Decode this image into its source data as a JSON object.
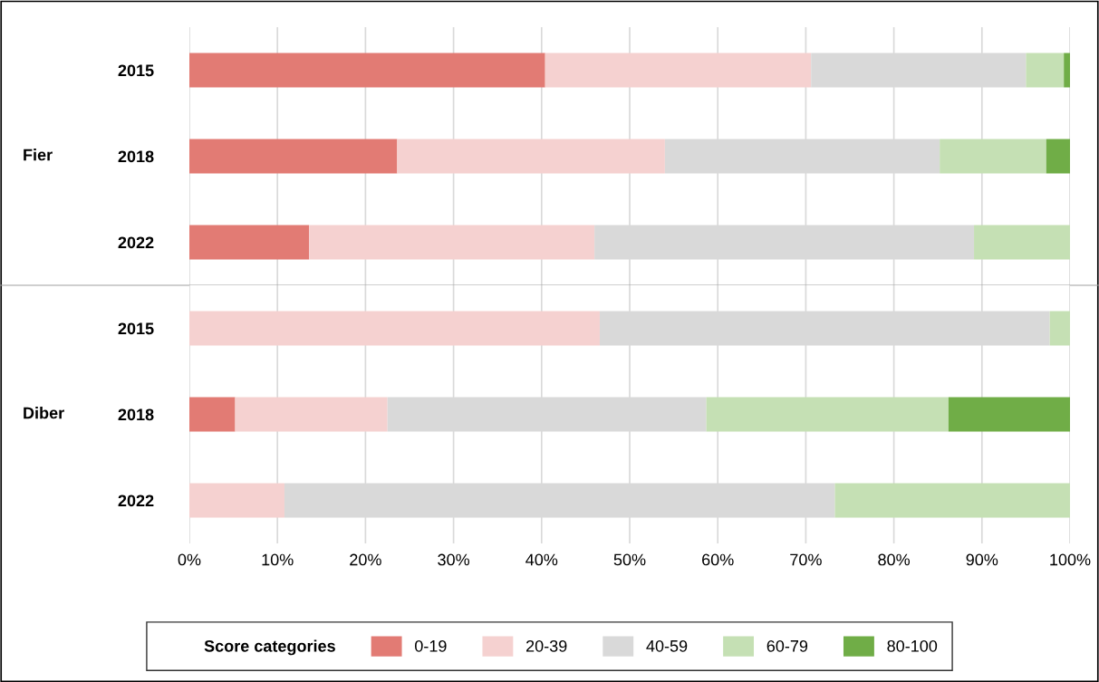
{
  "chart_data": [
    {
      "type": "bar",
      "orientation": "horizontal",
      "stacked": true,
      "categories": [
        "2015",
        "2018",
        "2022"
      ],
      "annotations": [
        "Fier"
      ],
      "series": [
        {
          "name": "0-19",
          "color": "#e27b74",
          "values": [
            40.4,
            23.6,
            13.6
          ]
        },
        {
          "name": "20-39",
          "color": "#f5d1d0",
          "values": [
            30.2,
            30.4,
            32.4
          ]
        },
        {
          "name": "40-59",
          "color": "#d9d9d9",
          "values": [
            24.4,
            31.2,
            43.1
          ]
        },
        {
          "name": "60-79",
          "color": "#c5e0b4",
          "values": [
            4.3,
            12.1,
            10.9
          ]
        },
        {
          "name": "80-100",
          "color": "#70ad47",
          "values": [
            0.7,
            2.7,
            0
          ]
        }
      ],
      "legend_title": "Score categories",
      "legend": "bottom",
      "xlim": [
        0,
        100
      ],
      "xticks": [
        {
          "value": 0,
          "label": null
        },
        {
          "value": 10,
          "label": null
        },
        {
          "value": 20,
          "label": null
        },
        {
          "value": 30,
          "label": null
        },
        {
          "value": 40,
          "label": null
        },
        {
          "value": 50,
          "label": null
        },
        {
          "value": 60,
          "label": null
        },
        {
          "value": 70,
          "label": null
        },
        {
          "value": 80,
          "label": null
        },
        {
          "value": 90,
          "label": null
        },
        {
          "value": 100,
          "label": null
        }
      ],
      "tick_labels": "y",
      "grid": "x"
    },
    {
      "type": "bar",
      "orientation": "horizontal",
      "stacked": true,
      "categories": [
        "2015",
        "2018",
        "2022"
      ],
      "annotations": [
        "Diber"
      ],
      "series": [
        {
          "color": "#e27b74",
          "values": [
            0,
            5.2,
            0
          ]
        },
        {
          "color": "#f5d1d0",
          "values": [
            46.6,
            17.3,
            10.8
          ]
        },
        {
          "color": "#d9d9d9",
          "values": [
            51.1,
            36.2,
            62.5
          ]
        },
        {
          "color": "#c5e0b4",
          "values": [
            2.3,
            27.5,
            26.7
          ]
        },
        {
          "color": "#70ad47",
          "values": [
            0,
            13.8,
            0
          ]
        }
      ],
      "xlim": [
        0,
        100
      ],
      "xticks": [
        {
          "value": 0,
          "label": "0%"
        },
        {
          "value": 10,
          "label": "10%"
        },
        {
          "value": 20,
          "label": "20%"
        },
        {
          "value": 30,
          "label": "30%"
        },
        {
          "value": 40,
          "label": "40%"
        },
        {
          "value": 50,
          "label": "50%"
        },
        {
          "value": 60,
          "label": "60%"
        },
        {
          "value": 70,
          "label": "70%"
        },
        {
          "value": 80,
          "label": "80%"
        },
        {
          "value": 90,
          "label": "90%"
        },
        {
          "value": 100,
          "label": "100%"
        }
      ],
      "grid": "x"
    }
  ]
}
